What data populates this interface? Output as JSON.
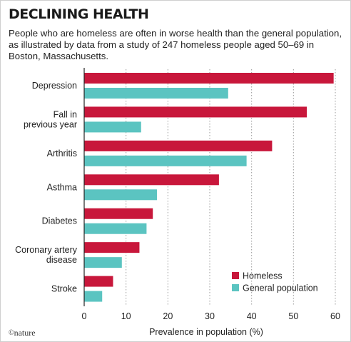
{
  "header": {
    "title": "DECLINING HEALTH",
    "subtitle": "People who are homeless are often in worse health than the general population, as illustrated by data from a study of 247 homeless people aged 50–69 in Boston, Massachusetts."
  },
  "footer": {
    "credit_symbol": "©",
    "credit_text": "nature"
  },
  "chart_data": {
    "type": "bar",
    "orientation": "horizontal",
    "categories": [
      [
        "Depression"
      ],
      [
        "Fall in",
        "previous year"
      ],
      [
        "Arthritis"
      ],
      [
        "Asthma"
      ],
      [
        "Diabetes"
      ],
      [
        "Coronary artery",
        "disease"
      ],
      [
        "Stroke"
      ]
    ],
    "series": [
      {
        "name": "Homeless",
        "color": "#c8173b",
        "values": [
          59.6,
          53.2,
          44.9,
          32.2,
          16.4,
          13.2,
          6.9
        ]
      },
      {
        "name": "General population",
        "color": "#5bc4c1",
        "values": [
          34.4,
          13.6,
          38.8,
          17.4,
          14.9,
          9.0,
          4.3
        ]
      }
    ],
    "xlabel": "Prevalence in population (%)",
    "xlim": [
      0,
      60
    ],
    "xticks": [
      0,
      10,
      20,
      30,
      40,
      50,
      60
    ],
    "grid": "vertical dotted",
    "legend_position": "bottom-right"
  }
}
